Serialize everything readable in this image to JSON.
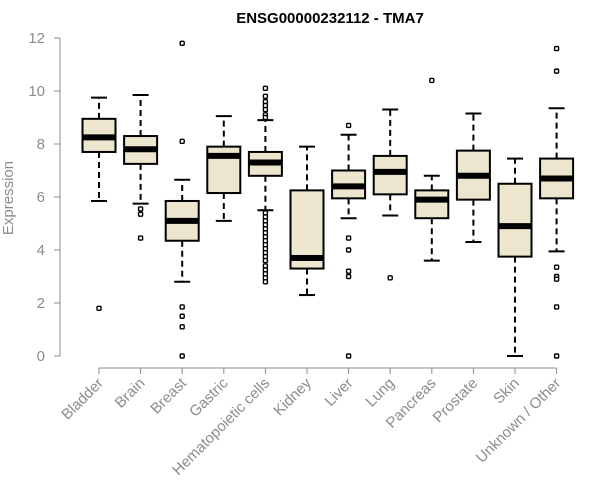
{
  "chart_data": {
    "type": "boxplot",
    "title": "ENSG00000232112 - TMA7",
    "xlabel": "",
    "ylabel": "Expression",
    "ylim": [
      0,
      12
    ],
    "yticks": [
      0,
      2,
      4,
      6,
      8,
      10,
      12
    ],
    "grid": false,
    "box_fill": "#ede6cf",
    "line_color": "#000000",
    "categories": [
      "Bladder",
      "Brain",
      "Breast",
      "Gastric",
      "Hematopoietic cells",
      "Kidney",
      "Liver",
      "Lung",
      "Pancreas",
      "Prostate",
      "Skin",
      "Unknown / Other"
    ],
    "boxes": [
      {
        "q1": 7.7,
        "median": 8.25,
        "q3": 8.95,
        "whisker_low": 5.85,
        "whisker_high": 9.75,
        "outliers": [
          1.8
        ]
      },
      {
        "q1": 7.25,
        "median": 7.8,
        "q3": 8.3,
        "whisker_low": 5.75,
        "whisker_high": 9.85,
        "outliers": [
          5.55,
          5.35,
          4.45
        ]
      },
      {
        "q1": 4.35,
        "median": 5.1,
        "q3": 5.85,
        "whisker_low": 2.8,
        "whisker_high": 6.65,
        "outliers": [
          11.8,
          8.1,
          1.85,
          1.5,
          1.1,
          0.0
        ]
      },
      {
        "q1": 6.15,
        "median": 7.55,
        "q3": 7.9,
        "whisker_low": 5.1,
        "whisker_high": 9.05,
        "outliers": []
      },
      {
        "q1": 6.8,
        "median": 7.3,
        "q3": 7.7,
        "whisker_low": 5.5,
        "whisker_high": 8.9,
        "outliers": [
          10.1,
          9.8,
          9.6,
          9.45,
          9.3,
          9.1,
          9.0,
          5.4,
          5.25,
          5.1,
          4.95,
          4.8,
          4.65,
          4.5,
          4.35,
          4.2,
          4.05,
          3.9,
          3.75,
          3.6,
          3.4,
          3.25,
          3.1,
          2.95,
          2.8
        ]
      },
      {
        "q1": 3.3,
        "median": 3.7,
        "q3": 6.25,
        "whisker_low": 2.3,
        "whisker_high": 7.9,
        "outliers": []
      },
      {
        "q1": 5.95,
        "median": 6.4,
        "q3": 7.0,
        "whisker_low": 5.2,
        "whisker_high": 8.35,
        "outliers": [
          8.7,
          4.45,
          4.0,
          3.2,
          3.0,
          0.0
        ]
      },
      {
        "q1": 6.1,
        "median": 6.95,
        "q3": 7.55,
        "whisker_low": 5.3,
        "whisker_high": 9.3,
        "outliers": [
          2.95
        ]
      },
      {
        "q1": 5.2,
        "median": 5.9,
        "q3": 6.25,
        "whisker_low": 3.6,
        "whisker_high": 6.8,
        "outliers": [
          10.4
        ]
      },
      {
        "q1": 5.9,
        "median": 6.8,
        "q3": 7.75,
        "whisker_low": 4.3,
        "whisker_high": 9.15,
        "outliers": []
      },
      {
        "q1": 3.75,
        "median": 4.9,
        "q3": 6.5,
        "whisker_low": 0.0,
        "whisker_high": 7.45,
        "outliers": []
      },
      {
        "q1": 5.95,
        "median": 6.7,
        "q3": 7.45,
        "whisker_low": 3.95,
        "whisker_high": 9.35,
        "outliers": [
          11.6,
          10.75,
          3.35,
          3.0,
          2.9,
          1.85,
          0.0
        ]
      }
    ]
  }
}
